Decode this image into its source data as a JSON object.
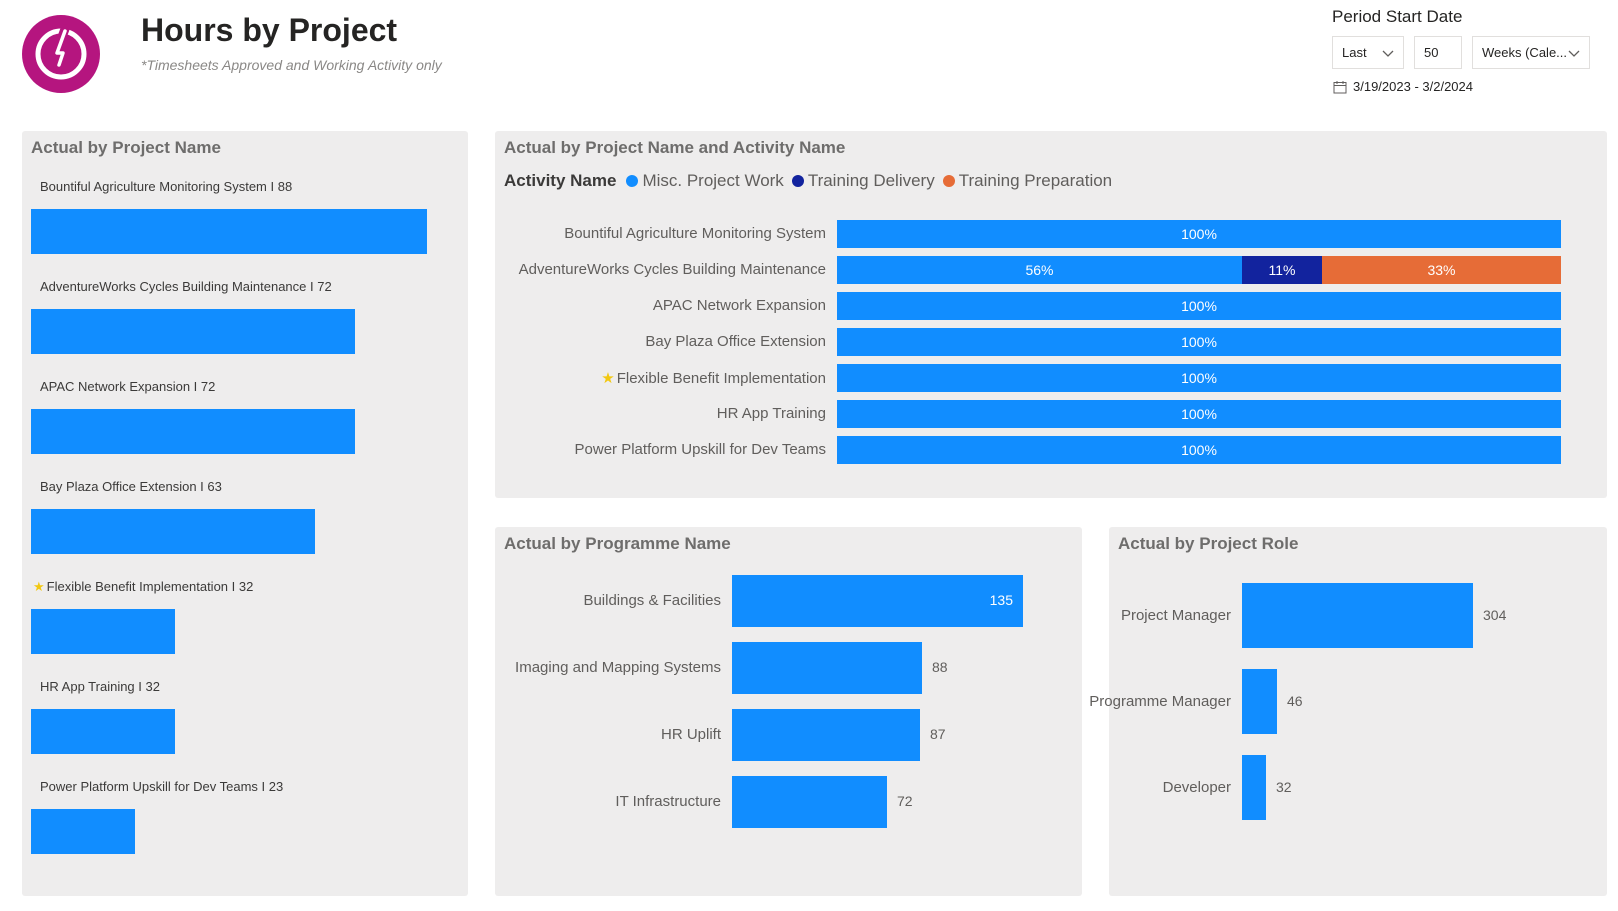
{
  "header": {
    "title": "Hours by Project",
    "subtitle": "*Timesheets Approved and Working Activity only",
    "logo_icon": "power-icon",
    "logo_color": "#b5157f"
  },
  "slicer": {
    "title": "Period Start Date",
    "mode": "Last",
    "count": "50",
    "unit": "Weeks (Cale...",
    "range": "3/19/2023 - 3/2/2024",
    "range_icon": "calendar-icon"
  },
  "colors": {
    "blue": "#118dff",
    "navy": "#12239e",
    "orange": "#e66c37",
    "panel": "#eeeded"
  },
  "panels": {
    "project_name": {
      "title": "Actual by Project Name"
    },
    "activity": {
      "title": "Actual by Project Name and Activity Name"
    },
    "programme": {
      "title": "Actual by Programme Name"
    },
    "role": {
      "title": "Actual by Project Role"
    }
  },
  "chart_data": [
    {
      "type": "bar",
      "title": "Actual by Project Name",
      "categories": [
        "Bountiful Agriculture Monitoring System",
        "AdventureWorks Cycles Building Maintenance",
        "APAC Network Expansion",
        "Bay Plaza Office Extension",
        "Flexible Benefit Implementation",
        "HR App Training",
        "Power Platform Upskill for Dev Teams"
      ],
      "labels": [
        "Bountiful Agriculture Monitoring System I 88",
        "AdventureWorks Cycles Building Maintenance I 72",
        "APAC Network Expansion I 72",
        "Bay Plaza Office Extension I 63",
        "Flexible Benefit Implementation I 32",
        "HR App Training I 32",
        "Power Platform Upskill for Dev Teams I 23"
      ],
      "values": [
        88,
        72,
        72,
        63,
        32,
        32,
        23
      ],
      "starred": [
        false,
        false,
        false,
        false,
        true,
        false,
        false
      ],
      "xlim": [
        0,
        88
      ]
    },
    {
      "type": "bar",
      "stacked": "100%",
      "title": "Actual by Project Name and Activity Name",
      "legend_title": "Activity Name",
      "legend_position": "top-left",
      "categories": [
        "Bountiful Agriculture Monitoring System",
        "AdventureWorks Cycles Building Maintenance",
        "APAC Network Expansion",
        "Bay Plaza Office Extension",
        "Flexible Benefit Implementation",
        "HR App Training",
        "Power Platform Upskill for Dev Teams"
      ],
      "starred": [
        false,
        false,
        false,
        false,
        true,
        false,
        false
      ],
      "series": [
        {
          "name": "Misc. Project Work",
          "color": "#118dff",
          "values": [
            100,
            56,
            100,
            100,
            100,
            100,
            100
          ],
          "labels": [
            "100%",
            "56%",
            "100%",
            "100%",
            "100%",
            "100%",
            "100%"
          ]
        },
        {
          "name": "Training Delivery",
          "color": "#12239e",
          "values": [
            0,
            11,
            0,
            0,
            0,
            0,
            0
          ],
          "labels": [
            "",
            "11%",
            "",
            "",
            "",
            "",
            ""
          ]
        },
        {
          "name": "Training Preparation",
          "color": "#e66c37",
          "values": [
            0,
            33,
            0,
            0,
            0,
            0,
            0
          ],
          "labels": [
            "",
            "33%",
            "",
            "",
            "",
            "",
            ""
          ]
        }
      ]
    },
    {
      "type": "bar",
      "title": "Actual by Programme Name",
      "categories": [
        "Buildings & Facilities",
        "Imaging and Mapping Systems",
        "HR Uplift",
        "IT Infrastructure"
      ],
      "values": [
        135,
        88,
        87,
        72
      ],
      "value_labels": [
        "135",
        "88",
        "87",
        "72"
      ],
      "xlim": [
        0,
        135
      ]
    },
    {
      "type": "bar",
      "title": "Actual by Project Role",
      "categories": [
        "Project Manager",
        "Programme Manager",
        "Developer"
      ],
      "values": [
        304,
        46,
        32
      ],
      "value_labels": [
        "304",
        "46",
        "32"
      ],
      "xlim": [
        0,
        304
      ]
    }
  ]
}
